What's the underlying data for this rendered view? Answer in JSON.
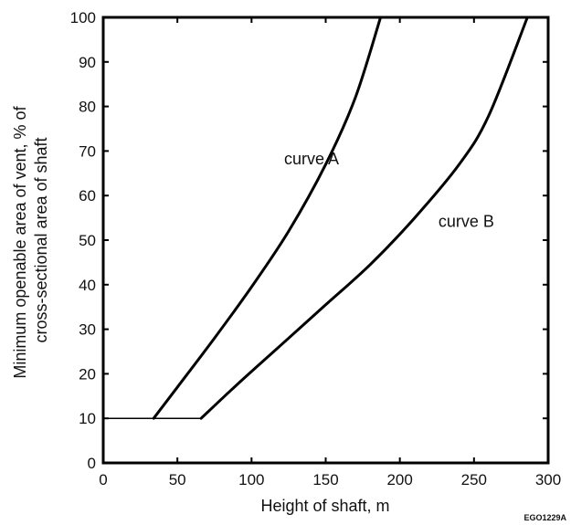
{
  "chart_data": {
    "type": "line",
    "title": "",
    "xlabel": "Height of shaft, m",
    "ylabel_lines": [
      "Minimum openable area of vent, % of",
      "cross-sectional area of shaft"
    ],
    "xlim": [
      0,
      300
    ],
    "ylim": [
      0,
      100
    ],
    "x_ticks": [
      "0",
      "50",
      "100",
      "150",
      "200",
      "250",
      "300"
    ],
    "y_ticks": [
      "0",
      "10",
      "20",
      "30",
      "40",
      "50",
      "60",
      "70",
      "80",
      "90",
      "100"
    ],
    "grid": false,
    "legend": "none",
    "floor": {
      "y": 10,
      "x": [
        0,
        66
      ]
    },
    "series": [
      {
        "name": "curve A",
        "x": [
          34,
          50,
          75,
          100,
          125,
          150,
          170,
          187
        ],
        "y": [
          10,
          17,
          28,
          39.5,
          52,
          67,
          82,
          100
        ]
      },
      {
        "name": "curve B",
        "x": [
          66,
          90,
          120,
          150,
          180,
          210,
          240,
          260,
          286
        ],
        "y": [
          10,
          17.5,
          26.5,
          35.5,
          44.5,
          55,
          67,
          78,
          100
        ]
      }
    ],
    "annotations": [
      {
        "text": "curve A",
        "x": 122,
        "y": 67
      },
      {
        "text": "curve B",
        "x": 226,
        "y": 53
      }
    ]
  },
  "figure_code": "EGO1229A"
}
